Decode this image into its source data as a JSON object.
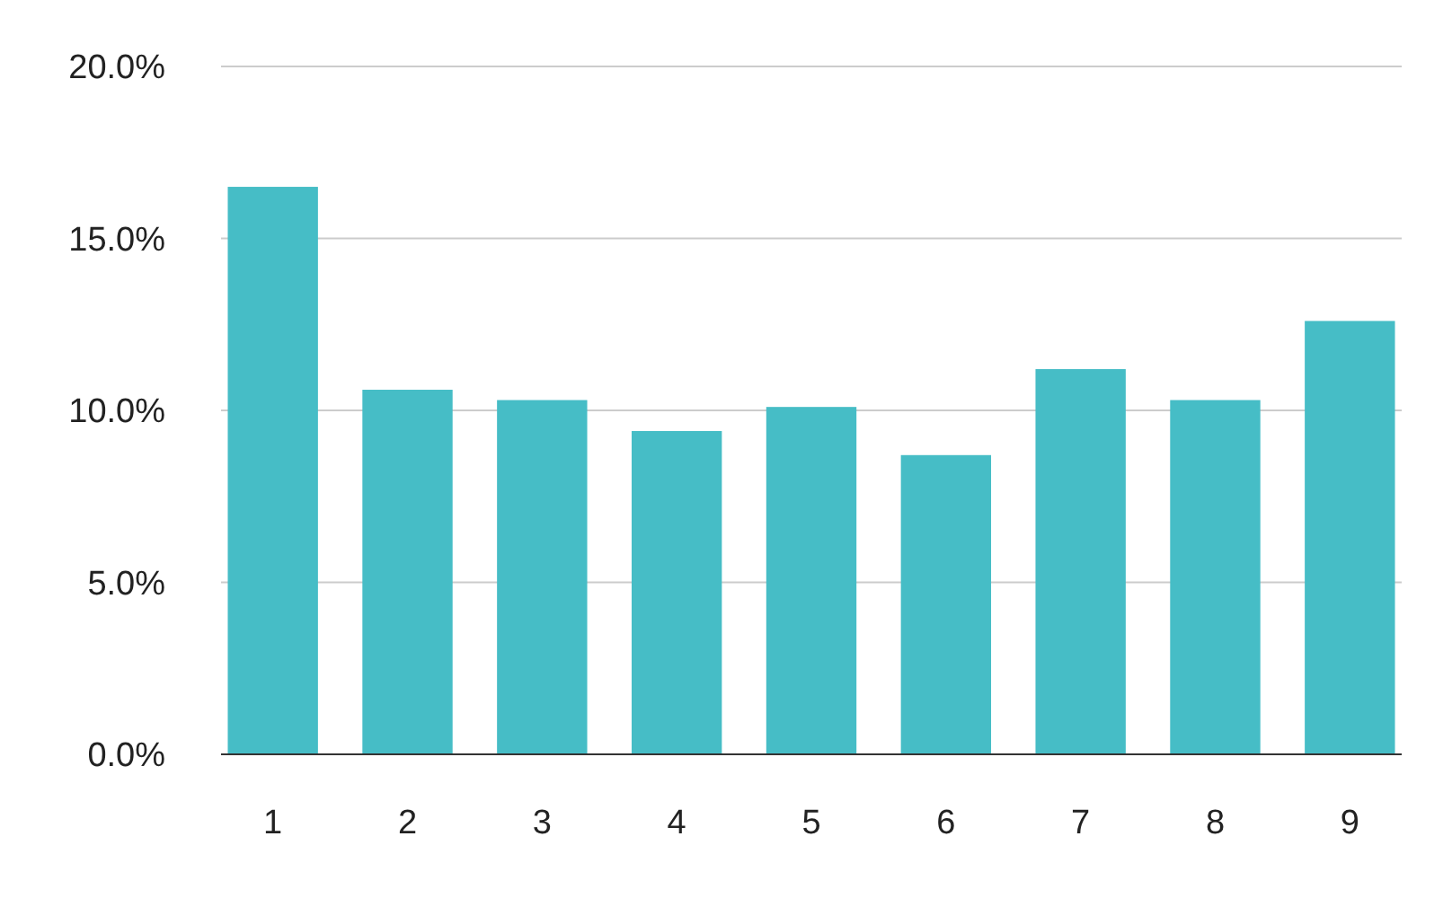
{
  "chart_data": {
    "type": "bar",
    "categories": [
      "1",
      "2",
      "3",
      "4",
      "5",
      "6",
      "7",
      "8",
      "9"
    ],
    "values": [
      16.5,
      10.6,
      10.3,
      9.4,
      10.1,
      8.7,
      11.2,
      10.3,
      12.6
    ],
    "color": "#46bdc6",
    "ylim": [
      0,
      20
    ],
    "yticks": [
      {
        "value": 0,
        "label": "0.0%"
      },
      {
        "value": 5,
        "label": "5.0%"
      },
      {
        "value": 10,
        "label": "10.0%"
      },
      {
        "value": 15,
        "label": "15.0%"
      },
      {
        "value": 20,
        "label": "20.0%"
      }
    ],
    "grid": "y"
  }
}
